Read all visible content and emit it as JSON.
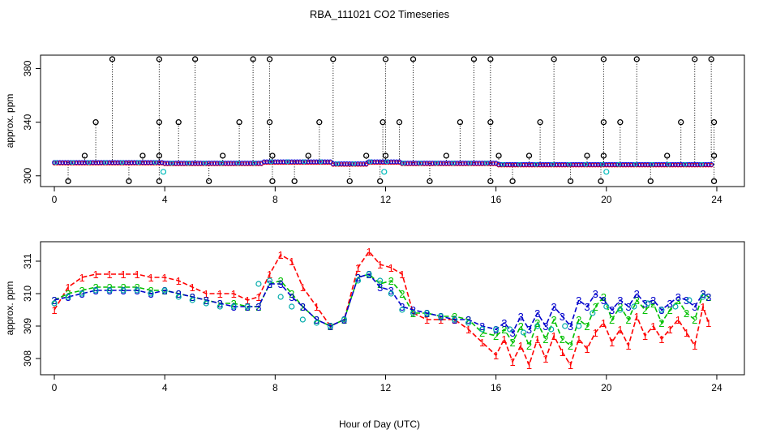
{
  "chart_title": "RBA_111021  CO2 Timeseries",
  "chart_data": [
    {
      "type": "scatter",
      "panel": "top",
      "title": "RBA_111021  CO2 Timeseries",
      "xlabel": "",
      "ylabel": "approx. ppm",
      "xlim": [
        -0.5,
        25
      ],
      "ylim": [
        292,
        390
      ],
      "xticks": [
        0,
        4,
        8,
        12,
        16,
        20,
        24
      ],
      "yticks": [
        300,
        340,
        380
      ],
      "spike_times": [
        2.1,
        3.8,
        5.1,
        7.2,
        7.8,
        10.1,
        12.0,
        13.0,
        15.2,
        15.8,
        18.1,
        19.9,
        21.1,
        23.2,
        23.8
      ],
      "mid_spikes": [
        {
          "t": 1.5,
          "v": 340
        },
        {
          "t": 3.8,
          "v": 340
        },
        {
          "t": 4.5,
          "v": 340
        },
        {
          "t": 6.7,
          "v": 340
        },
        {
          "t": 7.8,
          "v": 340
        },
        {
          "t": 9.6,
          "v": 340
        },
        {
          "t": 11.9,
          "v": 340
        },
        {
          "t": 12.5,
          "v": 340
        },
        {
          "t": 14.7,
          "v": 340
        },
        {
          "t": 15.8,
          "v": 340
        },
        {
          "t": 17.6,
          "v": 340
        },
        {
          "t": 19.9,
          "v": 340
        },
        {
          "t": 20.5,
          "v": 340
        },
        {
          "t": 22.7,
          "v": 340
        },
        {
          "t": 23.9,
          "v": 340
        }
      ],
      "low_spikes": [
        0.5,
        2.7,
        3.8,
        5.6,
        7.9,
        8.7,
        10.7,
        11.8,
        13.6,
        15.8,
        16.6,
        18.7,
        19.8,
        21.6,
        23.9
      ],
      "small_spikes": [
        1.1,
        3.2,
        3.8,
        6.1,
        7.9,
        9.2,
        11.3,
        12.0,
        14.2,
        16.1,
        17.2,
        19.3,
        19.9,
        22.2,
        23.9
      ],
      "cyan_low": [
        {
          "t": 3.95,
          "v": 303
        },
        {
          "t": 11.95,
          "v": 303
        },
        {
          "t": 20.0,
          "v": 303
        }
      ],
      "baseline_segments": [
        {
          "from": 0.0,
          "to": 4.0,
          "v": 310
        },
        {
          "from": 4.0,
          "to": 7.5,
          "v": 309.5
        },
        {
          "from": 7.5,
          "to": 10.0,
          "v": 310.5
        },
        {
          "from": 10.0,
          "to": 11.3,
          "v": 309
        },
        {
          "from": 11.3,
          "to": 12.5,
          "v": 310.5
        },
        {
          "from": 12.5,
          "to": 16.0,
          "v": 309.5
        },
        {
          "from": 16.0,
          "to": 24.0,
          "v": 308.5
        }
      ],
      "baseline_step": 0.1
    },
    {
      "type": "line",
      "panel": "bottom",
      "xlabel": "Hour of Day (UTC)",
      "ylabel": "approx. ppm",
      "xlim": [
        -0.5,
        25
      ],
      "ylim": [
        307.5,
        311.6
      ],
      "xticks": [
        0,
        4,
        8,
        12,
        16,
        20,
        24
      ],
      "yticks": [
        308,
        309,
        310,
        311
      ],
      "series": [
        {
          "name": "1",
          "color": "#ff0000",
          "label": "1",
          "x": [
            0,
            0.5,
            1,
            1.5,
            2,
            2.5,
            3,
            3.5,
            4,
            4.5,
            5,
            5.5,
            6,
            6.5,
            7,
            7.4,
            7.8,
            8.2,
            8.6,
            9,
            9.5,
            10,
            10.5,
            11,
            11.4,
            11.8,
            12.2,
            12.6,
            13,
            13.5,
            14,
            14.5,
            15,
            15.5,
            16,
            16.3,
            16.6,
            16.9,
            17.2,
            17.5,
            17.8,
            18.1,
            18.4,
            18.7,
            19,
            19.3,
            19.6,
            19.9,
            20.2,
            20.5,
            20.8,
            21.1,
            21.4,
            21.7,
            22,
            22.3,
            22.6,
            22.9,
            23.2,
            23.5,
            23.7
          ],
          "y": [
            309.5,
            310.2,
            310.5,
            310.6,
            310.6,
            310.6,
            310.6,
            310.5,
            310.5,
            310.4,
            310.2,
            310.0,
            310.0,
            310.0,
            309.8,
            309.9,
            310.6,
            311.2,
            311.0,
            310.2,
            309.6,
            309.0,
            309.2,
            310.8,
            311.3,
            310.9,
            310.8,
            310.6,
            309.4,
            309.2,
            309.2,
            309.2,
            308.9,
            308.5,
            308.1,
            308.6,
            307.9,
            308.4,
            307.8,
            308.6,
            308.0,
            308.7,
            308.2,
            307.8,
            308.6,
            308.3,
            308.8,
            309.1,
            308.5,
            308.9,
            308.4,
            309.3,
            308.7,
            309.0,
            308.6,
            308.9,
            309.2,
            308.8,
            308.4,
            309.6,
            309.1
          ]
        },
        {
          "name": "2",
          "color": "#00c000",
          "label": "2",
          "x": [
            0,
            0.5,
            1,
            1.5,
            2,
            2.5,
            3,
            3.5,
            4,
            4.5,
            5,
            5.5,
            6,
            6.5,
            7,
            7.4,
            7.8,
            8.2,
            8.6,
            9,
            9.5,
            10,
            10.5,
            11,
            11.4,
            11.8,
            12.2,
            12.6,
            13,
            13.5,
            14,
            14.5,
            15,
            15.5,
            16,
            16.3,
            16.6,
            16.9,
            17.2,
            17.5,
            17.8,
            18.1,
            18.4,
            18.7,
            19,
            19.3,
            19.6,
            19.9,
            20.2,
            20.5,
            20.8,
            21.1,
            21.4,
            21.7,
            22,
            22.3,
            22.6,
            22.9,
            23.2,
            23.5,
            23.7
          ],
          "y": [
            309.8,
            310.0,
            310.1,
            310.2,
            310.2,
            310.2,
            310.2,
            310.1,
            310.1,
            310.0,
            309.9,
            309.8,
            309.7,
            309.7,
            309.6,
            309.6,
            310.3,
            310.4,
            310.0,
            309.6,
            309.2,
            309.0,
            309.2,
            310.5,
            310.6,
            310.3,
            310.4,
            310.0,
            309.4,
            309.4,
            309.3,
            309.3,
            309.2,
            308.8,
            308.7,
            308.9,
            308.5,
            309.0,
            308.4,
            309.1,
            308.6,
            309.2,
            308.6,
            308.4,
            309.2,
            309.0,
            309.6,
            309.9,
            309.2,
            309.6,
            309.2,
            309.8,
            309.5,
            309.7,
            309.1,
            309.5,
            309.8,
            309.4,
            309.2,
            310.0,
            309.9
          ]
        },
        {
          "name": "3",
          "color": "#0000cc",
          "label": "3",
          "x": [
            0,
            0.5,
            1,
            1.5,
            2,
            2.5,
            3,
            3.5,
            4,
            4.5,
            5,
            5.5,
            6,
            6.5,
            7,
            7.4,
            7.8,
            8.2,
            8.6,
            9,
            9.5,
            10,
            10.5,
            11,
            11.4,
            11.8,
            12.2,
            12.6,
            13,
            13.5,
            14,
            14.5,
            15,
            15.5,
            16,
            16.3,
            16.6,
            16.9,
            17.2,
            17.5,
            17.8,
            18.1,
            18.4,
            18.7,
            19,
            19.3,
            19.6,
            19.9,
            20.2,
            20.5,
            20.8,
            21.1,
            21.4,
            21.7,
            22,
            22.3,
            22.6,
            22.9,
            23.2,
            23.5,
            23.7
          ],
          "y": [
            309.8,
            309.9,
            310.0,
            310.1,
            310.1,
            310.1,
            310.1,
            310.0,
            310.1,
            310.0,
            309.9,
            309.8,
            309.7,
            309.6,
            309.6,
            309.6,
            310.3,
            310.3,
            309.9,
            309.6,
            309.2,
            309.0,
            309.2,
            310.5,
            310.6,
            310.2,
            310.1,
            309.6,
            309.5,
            309.4,
            309.3,
            309.2,
            309.2,
            309.0,
            308.9,
            309.1,
            308.8,
            309.3,
            308.9,
            309.4,
            309.0,
            309.6,
            309.3,
            309.0,
            309.8,
            309.6,
            310.0,
            309.8,
            309.5,
            309.8,
            309.6,
            310.0,
            309.7,
            309.8,
            309.5,
            309.7,
            309.9,
            309.8,
            309.6,
            310.0,
            309.9
          ]
        },
        {
          "name": "circles",
          "color": "#0000cc",
          "label": "o",
          "x": [
            0,
            0.5,
            1,
            1.5,
            2,
            2.5,
            3,
            3.5,
            4,
            4.5,
            5,
            5.5,
            6,
            6.5,
            7,
            7.4,
            7.8,
            8.2,
            8.6,
            9,
            9.5,
            10,
            10.5,
            11,
            11.4,
            11.8,
            12.2,
            12.6,
            13,
            13.5,
            14,
            14.5,
            15,
            15.5,
            16,
            16.5,
            17,
            17.5,
            18,
            18.5,
            19,
            19.5,
            20,
            20.5,
            21,
            21.5,
            22,
            22.5,
            23,
            23.5
          ],
          "y": [
            309.7,
            309.9,
            310.0,
            310.1,
            310.1,
            310.1,
            310.1,
            310.0,
            310.1,
            309.9,
            309.8,
            309.7,
            309.6,
            309.6,
            309.6,
            310.3,
            310.4,
            309.9,
            309.6,
            309.2,
            309.1,
            309.0,
            309.2,
            310.4,
            310.6,
            310.4,
            310.0,
            309.5,
            309.4,
            309.4,
            309.3,
            309.2,
            309.1,
            308.9,
            308.9,
            308.9,
            308.8,
            309.0,
            308.9,
            309.0,
            309.0,
            309.4,
            309.6,
            309.5,
            309.6,
            309.7,
            309.5,
            309.6,
            309.8,
            309.9
          ]
        }
      ]
    }
  ]
}
